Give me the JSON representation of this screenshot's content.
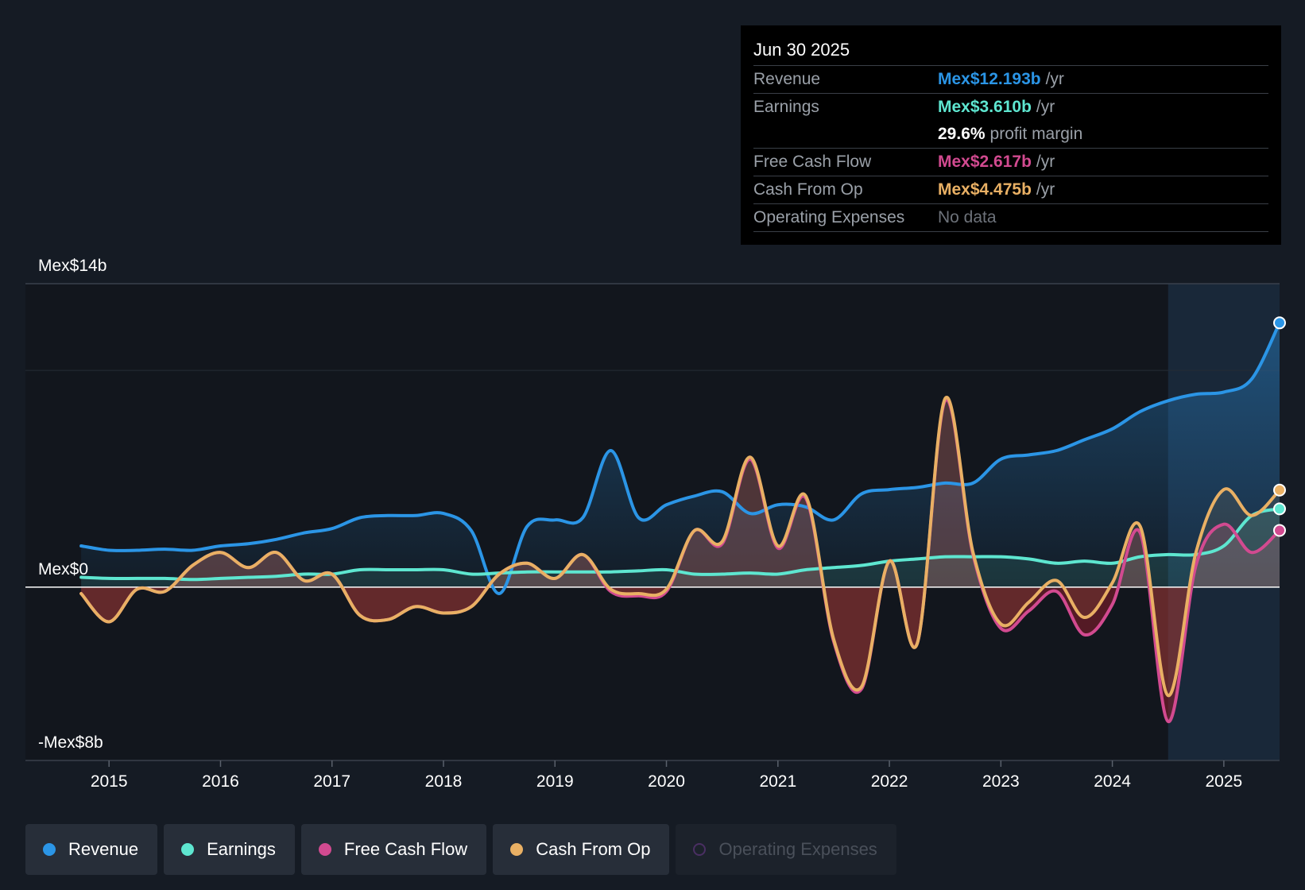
{
  "tooltip": {
    "date": "Jun 30 2025",
    "rows": {
      "revenue": {
        "label": "Revenue",
        "value": "Mex$12.193b",
        "unit": "/yr"
      },
      "earnings": {
        "label": "Earnings",
        "value": "Mex$3.610b",
        "unit": "/yr"
      },
      "margin": {
        "value": "29.6%",
        "text": "profit margin"
      },
      "fcf": {
        "label": "Free Cash Flow",
        "value": "Mex$2.617b",
        "unit": "/yr"
      },
      "cfo": {
        "label": "Cash From Op",
        "value": "Mex$4.475b",
        "unit": "/yr"
      },
      "opex": {
        "label": "Operating Expenses",
        "value": "No data"
      }
    }
  },
  "legend": {
    "revenue": "Revenue",
    "earnings": "Earnings",
    "fcf": "Free Cash Flow",
    "cfo": "Cash From Op",
    "opex": "Operating Expenses"
  },
  "colors": {
    "revenue": "#2b95e6",
    "earnings": "#5ee6d0",
    "fcf": "#d24a90",
    "cfo": "#e9b064",
    "opex": "#6b3d8e",
    "background": "#151b24"
  },
  "chart_data": {
    "type": "line",
    "title": "",
    "xlabel": "",
    "ylabel": "",
    "ylim": [
      -8,
      14
    ],
    "y_ticks": [
      {
        "value": 14,
        "label": "Mex$14b"
      },
      {
        "value": 0,
        "label": "Mex$0"
      },
      {
        "value": -8,
        "label": "-Mex$8b"
      }
    ],
    "x_ticks": [
      {
        "value": 2015,
        "label": "2015"
      },
      {
        "value": 2016,
        "label": "2016"
      },
      {
        "value": 2017,
        "label": "2017"
      },
      {
        "value": 2018,
        "label": "2018"
      },
      {
        "value": 2019,
        "label": "2019"
      },
      {
        "value": 2020,
        "label": "2020"
      },
      {
        "value": 2021,
        "label": "2021"
      },
      {
        "value": 2022,
        "label": "2022"
      },
      {
        "value": 2023,
        "label": "2023"
      },
      {
        "value": 2024,
        "label": "2024"
      },
      {
        "value": 2025,
        "label": "2025"
      }
    ],
    "xlim": [
      2014.25,
      2025.5
    ],
    "highlight_from": 2024.5,
    "series": [
      {
        "name": "Revenue",
        "key": "revenue",
        "values": [
          [
            2014.75,
            1.9
          ],
          [
            2015,
            1.7
          ],
          [
            2015.25,
            1.7
          ],
          [
            2015.5,
            1.75
          ],
          [
            2015.75,
            1.7
          ],
          [
            2016,
            1.9
          ],
          [
            2016.25,
            2.0
          ],
          [
            2016.5,
            2.2
          ],
          [
            2016.75,
            2.5
          ],
          [
            2017,
            2.7
          ],
          [
            2017.25,
            3.2
          ],
          [
            2017.5,
            3.3
          ],
          [
            2017.75,
            3.3
          ],
          [
            2018,
            3.4
          ],
          [
            2018.25,
            2.6
          ],
          [
            2018.5,
            -0.3
          ],
          [
            2018.75,
            2.8
          ],
          [
            2019,
            3.1
          ],
          [
            2019.25,
            3.2
          ],
          [
            2019.5,
            6.3
          ],
          [
            2019.75,
            3.2
          ],
          [
            2020,
            3.8
          ],
          [
            2020.25,
            4.2
          ],
          [
            2020.5,
            4.4
          ],
          [
            2020.75,
            3.4
          ],
          [
            2021,
            3.8
          ],
          [
            2021.25,
            3.7
          ],
          [
            2021.5,
            3.1
          ],
          [
            2021.75,
            4.3
          ],
          [
            2022,
            4.5
          ],
          [
            2022.25,
            4.6
          ],
          [
            2022.5,
            4.8
          ],
          [
            2022.75,
            4.8
          ],
          [
            2023,
            5.9
          ],
          [
            2023.25,
            6.1
          ],
          [
            2023.5,
            6.3
          ],
          [
            2023.75,
            6.8
          ],
          [
            2024,
            7.3
          ],
          [
            2024.25,
            8.1
          ],
          [
            2024.5,
            8.6
          ],
          [
            2024.75,
            8.9
          ],
          [
            2025,
            9.0
          ],
          [
            2025.25,
            9.6
          ],
          [
            2025.5,
            12.193
          ]
        ]
      },
      {
        "name": "Earnings",
        "key": "earnings",
        "values": [
          [
            2014.75,
            0.45
          ],
          [
            2015,
            0.4
          ],
          [
            2015.25,
            0.4
          ],
          [
            2015.5,
            0.4
          ],
          [
            2015.75,
            0.35
          ],
          [
            2016,
            0.4
          ],
          [
            2016.25,
            0.45
          ],
          [
            2016.5,
            0.5
          ],
          [
            2016.75,
            0.6
          ],
          [
            2017,
            0.6
          ],
          [
            2017.25,
            0.8
          ],
          [
            2017.5,
            0.8
          ],
          [
            2017.75,
            0.8
          ],
          [
            2018,
            0.8
          ],
          [
            2018.25,
            0.6
          ],
          [
            2018.5,
            0.65
          ],
          [
            2018.75,
            0.7
          ],
          [
            2019,
            0.7
          ],
          [
            2019.25,
            0.7
          ],
          [
            2019.5,
            0.7
          ],
          [
            2019.75,
            0.75
          ],
          [
            2020,
            0.8
          ],
          [
            2020.25,
            0.6
          ],
          [
            2020.5,
            0.6
          ],
          [
            2020.75,
            0.65
          ],
          [
            2021,
            0.6
          ],
          [
            2021.25,
            0.8
          ],
          [
            2021.5,
            0.9
          ],
          [
            2021.75,
            1.0
          ],
          [
            2022,
            1.2
          ],
          [
            2022.25,
            1.3
          ],
          [
            2022.5,
            1.4
          ],
          [
            2022.75,
            1.4
          ],
          [
            2023,
            1.4
          ],
          [
            2023.25,
            1.3
          ],
          [
            2023.5,
            1.1
          ],
          [
            2023.75,
            1.2
          ],
          [
            2024,
            1.1
          ],
          [
            2024.25,
            1.4
          ],
          [
            2024.5,
            1.5
          ],
          [
            2024.75,
            1.5
          ],
          [
            2025,
            1.9
          ],
          [
            2025.25,
            3.3
          ],
          [
            2025.5,
            3.61
          ]
        ]
      },
      {
        "name": "Free Cash Flow",
        "key": "fcf",
        "values": [
          [
            2014.75,
            -0.3
          ],
          [
            2015,
            -1.6
          ],
          [
            2015.25,
            -0.1
          ],
          [
            2015.5,
            -0.2
          ],
          [
            2015.75,
            1.0
          ],
          [
            2016,
            1.6
          ],
          [
            2016.25,
            0.9
          ],
          [
            2016.5,
            1.6
          ],
          [
            2016.75,
            0.3
          ],
          [
            2017,
            0.6
          ],
          [
            2017.25,
            -1.3
          ],
          [
            2017.5,
            -1.5
          ],
          [
            2017.75,
            -0.9
          ],
          [
            2018,
            -1.2
          ],
          [
            2018.25,
            -0.9
          ],
          [
            2018.5,
            0.6
          ],
          [
            2018.75,
            1.1
          ],
          [
            2019,
            0.4
          ],
          [
            2019.25,
            1.5
          ],
          [
            2019.5,
            -0.2
          ],
          [
            2019.75,
            -0.4
          ],
          [
            2020,
            -0.2
          ],
          [
            2020.25,
            2.6
          ],
          [
            2020.5,
            2.0
          ],
          [
            2020.75,
            5.9
          ],
          [
            2021,
            1.8
          ],
          [
            2021.25,
            4.1
          ],
          [
            2021.5,
            -2.5
          ],
          [
            2021.75,
            -4.7
          ],
          [
            2022,
            1.2
          ],
          [
            2022.25,
            -2.6
          ],
          [
            2022.5,
            8.6
          ],
          [
            2022.75,
            1.5
          ],
          [
            2023,
            -1.9
          ],
          [
            2023.25,
            -1.1
          ],
          [
            2023.5,
            -0.2
          ],
          [
            2023.75,
            -2.2
          ],
          [
            2024,
            -0.8
          ],
          [
            2024.25,
            2.5
          ],
          [
            2024.5,
            -6.2
          ],
          [
            2024.75,
            1.0
          ],
          [
            2025,
            2.9
          ],
          [
            2025.25,
            1.6
          ],
          [
            2025.5,
            2.617
          ]
        ]
      },
      {
        "name": "Cash From Op",
        "key": "cfo",
        "values": [
          [
            2014.75,
            -0.3
          ],
          [
            2015,
            -1.6
          ],
          [
            2015.25,
            -0.1
          ],
          [
            2015.5,
            -0.2
          ],
          [
            2015.75,
            1.0
          ],
          [
            2016,
            1.6
          ],
          [
            2016.25,
            0.9
          ],
          [
            2016.5,
            1.6
          ],
          [
            2016.75,
            0.3
          ],
          [
            2017,
            0.6
          ],
          [
            2017.25,
            -1.3
          ],
          [
            2017.5,
            -1.5
          ],
          [
            2017.75,
            -0.9
          ],
          [
            2018,
            -1.2
          ],
          [
            2018.25,
            -0.9
          ],
          [
            2018.5,
            0.6
          ],
          [
            2018.75,
            1.1
          ],
          [
            2019,
            0.4
          ],
          [
            2019.25,
            1.5
          ],
          [
            2019.5,
            -0.1
          ],
          [
            2019.75,
            -0.3
          ],
          [
            2020,
            -0.1
          ],
          [
            2020.25,
            2.6
          ],
          [
            2020.5,
            2.1
          ],
          [
            2020.75,
            6.0
          ],
          [
            2021,
            1.9
          ],
          [
            2021.25,
            4.2
          ],
          [
            2021.5,
            -2.4
          ],
          [
            2021.75,
            -4.6
          ],
          [
            2022,
            1.2
          ],
          [
            2022.25,
            -2.6
          ],
          [
            2022.5,
            8.7
          ],
          [
            2022.75,
            1.6
          ],
          [
            2023,
            -1.7
          ],
          [
            2023.25,
            -0.7
          ],
          [
            2023.5,
            0.3
          ],
          [
            2023.75,
            -1.4
          ],
          [
            2024,
            0.2
          ],
          [
            2024.25,
            2.8
          ],
          [
            2024.5,
            -5.0
          ],
          [
            2024.75,
            1.6
          ],
          [
            2025,
            4.5
          ],
          [
            2025.25,
            3.3
          ],
          [
            2025.5,
            4.475
          ]
        ]
      },
      {
        "name": "Operating Expenses",
        "key": "opex",
        "values": []
      }
    ]
  }
}
